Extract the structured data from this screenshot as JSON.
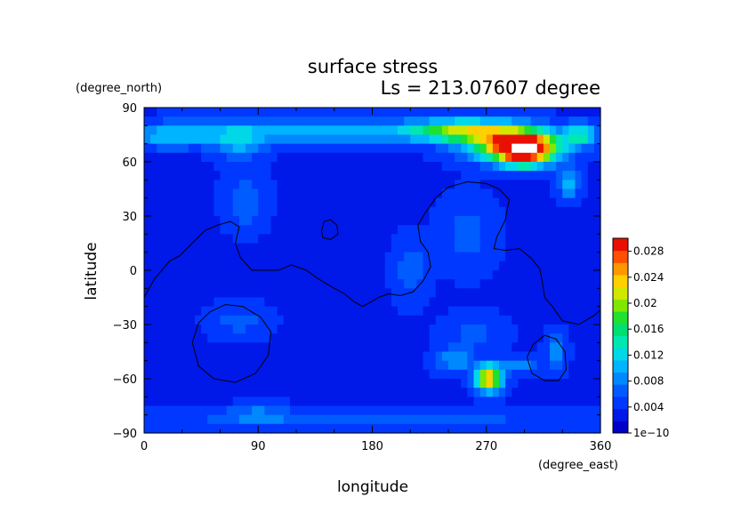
{
  "chart_data": {
    "type": "heatmap",
    "title": "surface stress",
    "subtitle": "Ls = 213.07607 degree",
    "xlabel": "longitude",
    "ylabel": "latitude",
    "x_unit": "(degree_east)",
    "y_unit": "(degree_north)",
    "xlim": [
      0,
      360
    ],
    "ylim": [
      -90,
      90
    ],
    "x_ticks": [
      0,
      90,
      180,
      270,
      360
    ],
    "y_ticks": [
      90,
      60,
      30,
      0,
      -30,
      -60,
      -90
    ],
    "y_tick_labels": [
      "90",
      "60",
      "30",
      "0",
      "−30",
      "−60",
      "−90"
    ],
    "grid": false,
    "colorbar": {
      "position": "right",
      "min": 1e-10,
      "max": 0.03,
      "tick_values": [
        1e-10,
        0.004,
        0.008,
        0.012,
        0.016,
        0.02,
        0.024,
        0.028
      ],
      "tick_labels": [
        "1e−10",
        "0.004",
        "0.008",
        "0.012",
        "0.016",
        "0.02",
        "0.024",
        "0.028"
      ],
      "colors": [
        "#0000c8",
        "#0018e8",
        "#0038ff",
        "#005cff",
        "#0088ff",
        "#00b4ff",
        "#00d8e8",
        "#00e8b0",
        "#00e070",
        "#20e030",
        "#80e800",
        "#d0e800",
        "#ffd000",
        "#ff9800",
        "#ff5000",
        "#e81000"
      ]
    },
    "field": {
      "background": 0.0035,
      "blobs": [
        {
          "lon": 130,
          "lat": 77,
          "slon": 110,
          "slat": 7,
          "v": 0.007
        },
        {
          "lon": 20,
          "lat": 74,
          "slon": 35,
          "slat": 6,
          "v": 0.006
        },
        {
          "lon": 75,
          "lat": 70,
          "slon": 18,
          "slat": 8,
          "v": 0.006
        },
        {
          "lon": 250,
          "lat": 77,
          "slon": 40,
          "slat": 6,
          "v": 0.014
        },
        {
          "lon": 292,
          "lat": 70,
          "slon": 35,
          "slat": 9,
          "v": 0.02
        },
        {
          "lon": 300,
          "lat": 66,
          "slon": 22,
          "slat": 8,
          "v": 0.022
        },
        {
          "lon": 345,
          "lat": 75,
          "slon": 12,
          "slat": 6,
          "v": 0.01
        },
        {
          "lon": 335,
          "lat": 48,
          "slon": 8,
          "slat": 8,
          "v": 0.008
        },
        {
          "lon": 80,
          "lat": 38,
          "slon": 15,
          "slat": 14,
          "v": 0.004
        },
        {
          "lon": 210,
          "lat": 0,
          "slon": 12,
          "slat": 15,
          "v": 0.004
        },
        {
          "lon": 255,
          "lat": 20,
          "slon": 20,
          "slat": 18,
          "v": 0.003
        },
        {
          "lon": 245,
          "lat": -50,
          "slon": 14,
          "slat": 6,
          "v": 0.006
        },
        {
          "lon": 272,
          "lat": -60,
          "slon": 10,
          "slat": 7,
          "v": 0.022
        },
        {
          "lon": 295,
          "lat": -52,
          "slon": 15,
          "slat": 4,
          "v": 0.006
        },
        {
          "lon": 260,
          "lat": -35,
          "slon": 22,
          "slat": 10,
          "v": 0.003
        },
        {
          "lon": 325,
          "lat": -45,
          "slon": 8,
          "slat": 9,
          "v": 0.005
        },
        {
          "lon": 75,
          "lat": -28,
          "slon": 22,
          "slat": 8,
          "v": 0.003
        },
        {
          "lon": 180,
          "lat": -82,
          "slon": 180,
          "slat": 5,
          "v": 0.003
        },
        {
          "lon": 90,
          "lat": -80,
          "slon": 25,
          "slat": 5,
          "v": 0.004
        }
      ],
      "saturated_max": {
        "lon": 300,
        "lat": 67,
        "slon": 10,
        "slat": 4
      }
    },
    "contours": [
      [
        [
          0,
          -15
        ],
        [
          8,
          -5
        ],
        [
          20,
          5
        ],
        [
          28,
          8
        ],
        [
          38,
          15
        ],
        [
          48,
          22
        ],
        [
          58,
          25
        ],
        [
          68,
          27
        ],
        [
          75,
          24
        ],
        [
          72,
          15
        ],
        [
          76,
          7
        ],
        [
          85,
          0
        ],
        [
          95,
          0
        ],
        [
          106,
          0
        ],
        [
          116,
          3
        ],
        [
          128,
          0
        ],
        [
          138,
          -5
        ],
        [
          150,
          -10
        ],
        [
          158,
          -13
        ],
        [
          165,
          -17
        ],
        [
          172,
          -20
        ],
        [
          178,
          -18
        ],
        [
          185,
          -15
        ],
        [
          193,
          -13
        ],
        [
          202,
          -14
        ],
        [
          212,
          -12
        ],
        [
          220,
          -6
        ],
        [
          226,
          2
        ],
        [
          224,
          10
        ],
        [
          218,
          16
        ],
        [
          216,
          25
        ],
        [
          222,
          32
        ],
        [
          230,
          40
        ],
        [
          240,
          46
        ],
        [
          255,
          49
        ],
        [
          270,
          48
        ],
        [
          280,
          45
        ],
        [
          288,
          39
        ],
        [
          285,
          28
        ],
        [
          278,
          18
        ],
        [
          276,
          12
        ],
        [
          285,
          11
        ],
        [
          296,
          12
        ],
        [
          305,
          7
        ],
        [
          312,
          1
        ],
        [
          314,
          -6
        ],
        [
          316,
          -15
        ],
        [
          322,
          -20
        ],
        [
          330,
          -28
        ],
        [
          343,
          -30
        ],
        [
          355,
          -25
        ],
        [
          360,
          -22
        ]
      ],
      [
        [
          140,
          22
        ],
        [
          142,
          27
        ],
        [
          147,
          28
        ],
        [
          152,
          25
        ],
        [
          153,
          20
        ],
        [
          147,
          17
        ],
        [
          141,
          18
        ],
        [
          140,
          22
        ]
      ],
      [
        [
          38,
          -40
        ],
        [
          43,
          -29
        ],
        [
          52,
          -23
        ],
        [
          64,
          -19
        ],
        [
          78,
          -20
        ],
        [
          92,
          -26
        ],
        [
          100,
          -34
        ],
        [
          98,
          -47
        ],
        [
          88,
          -57
        ],
        [
          72,
          -62
        ],
        [
          55,
          -60
        ],
        [
          43,
          -53
        ],
        [
          38,
          -40
        ]
      ],
      [
        [
          302,
          -48
        ],
        [
          307,
          -41
        ],
        [
          316,
          -36
        ],
        [
          325,
          -38
        ],
        [
          332,
          -45
        ],
        [
          333,
          -55
        ],
        [
          327,
          -61
        ],
        [
          316,
          -61
        ],
        [
          306,
          -57
        ],
        [
          302,
          -48
        ]
      ]
    ]
  }
}
